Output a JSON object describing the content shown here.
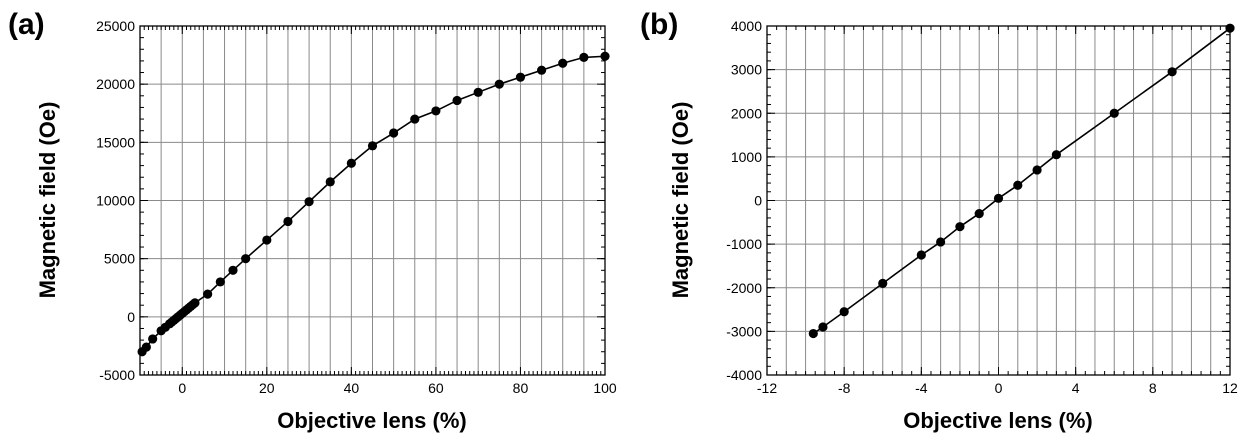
{
  "chart_data": [
    {
      "panel_label": "(a)",
      "type": "line",
      "xlabel": "Objective lens (%)",
      "ylabel": "Magnetic field (Oe)",
      "xlim": [
        -10,
        100
      ],
      "ylim": [
        -5000,
        25000
      ],
      "xticks": [
        0,
        20,
        40,
        60,
        80,
        100
      ],
      "yticks": [
        -5000,
        0,
        5000,
        10000,
        15000,
        20000,
        25000
      ],
      "grid": true,
      "series": [
        {
          "x": [
            -9.5,
            -8.5,
            -7,
            -5,
            -4,
            -3,
            -2.5,
            -2,
            -1.5,
            -1,
            -0.5,
            0,
            0.5,
            1,
            1.5,
            2,
            2.5,
            3,
            6,
            9,
            12,
            15,
            20,
            25,
            30,
            35,
            40,
            45,
            50,
            55,
            60,
            65,
            70,
            75,
            80,
            85,
            90,
            95,
            100
          ],
          "y": [
            -3000,
            -2600,
            -1900,
            -1200,
            -900,
            -600,
            -450,
            -300,
            -150,
            0,
            150,
            300,
            450,
            600,
            750,
            900,
            1050,
            1200,
            1950,
            3000,
            4000,
            5000,
            6600,
            8200,
            9900,
            11600,
            13200,
            14700,
            15800,
            17000,
            17700,
            18600,
            19300,
            20000,
            20600,
            21200,
            21800,
            22300,
            22400
          ]
        }
      ]
    },
    {
      "panel_label": "(b)",
      "type": "line",
      "xlabel": "Objective lens (%)",
      "ylabel": "Magnetic field (Oe)",
      "xlim": [
        -12,
        12
      ],
      "ylim": [
        -4000,
        4000
      ],
      "xticks": [
        -12,
        -8,
        -4,
        0,
        4,
        8,
        12
      ],
      "yticks": [
        -4000,
        -3000,
        -2000,
        -1000,
        0,
        1000,
        2000,
        3000,
        4000
      ],
      "grid": true,
      "series": [
        {
          "x": [
            -9.6,
            -9.1,
            -8,
            -6,
            -4,
            -3,
            -2,
            -1,
            0,
            1,
            2,
            3,
            6,
            9,
            12
          ],
          "y": [
            -3050,
            -2900,
            -2550,
            -1900,
            -1250,
            -950,
            -600,
            -300,
            50,
            350,
            700,
            1050,
            2000,
            2950,
            3950
          ]
        }
      ]
    }
  ]
}
